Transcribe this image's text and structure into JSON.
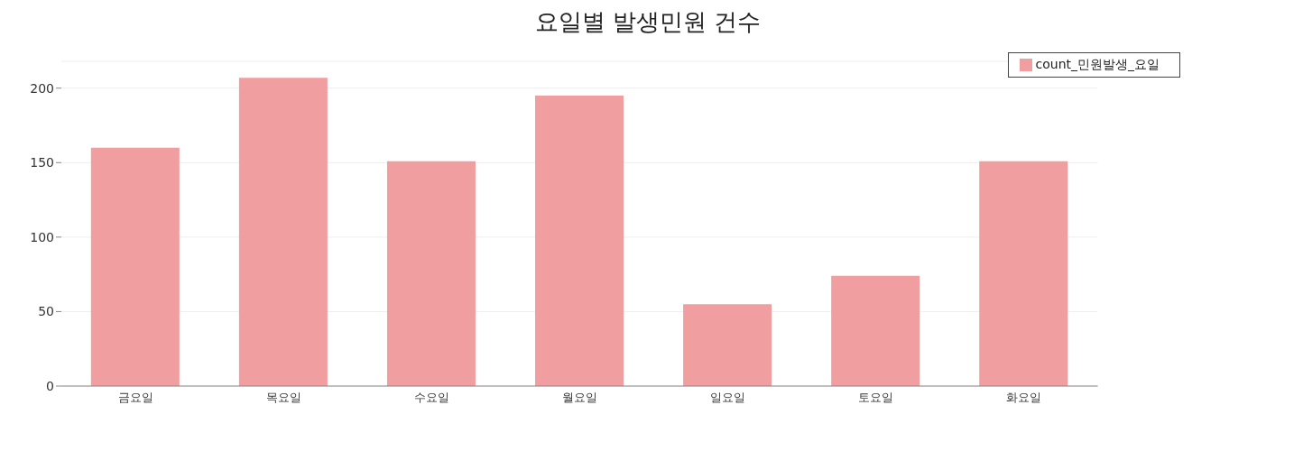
{
  "chart_data": {
    "type": "bar",
    "title": "요일별 발생민원 건수",
    "categories": [
      "금요일",
      "목요일",
      "수요일",
      "월요일",
      "일요일",
      "토요일",
      "화요일"
    ],
    "series": [
      {
        "name": "count_민원발생_요일",
        "color": "#f09ea0",
        "values": [
          160,
          207,
          151,
          195,
          55,
          74,
          151
        ]
      }
    ],
    "ylim": [
      0,
      218
    ],
    "yticks": [
      0,
      50,
      100,
      150,
      200
    ],
    "grid": "y",
    "legend": "top right"
  }
}
